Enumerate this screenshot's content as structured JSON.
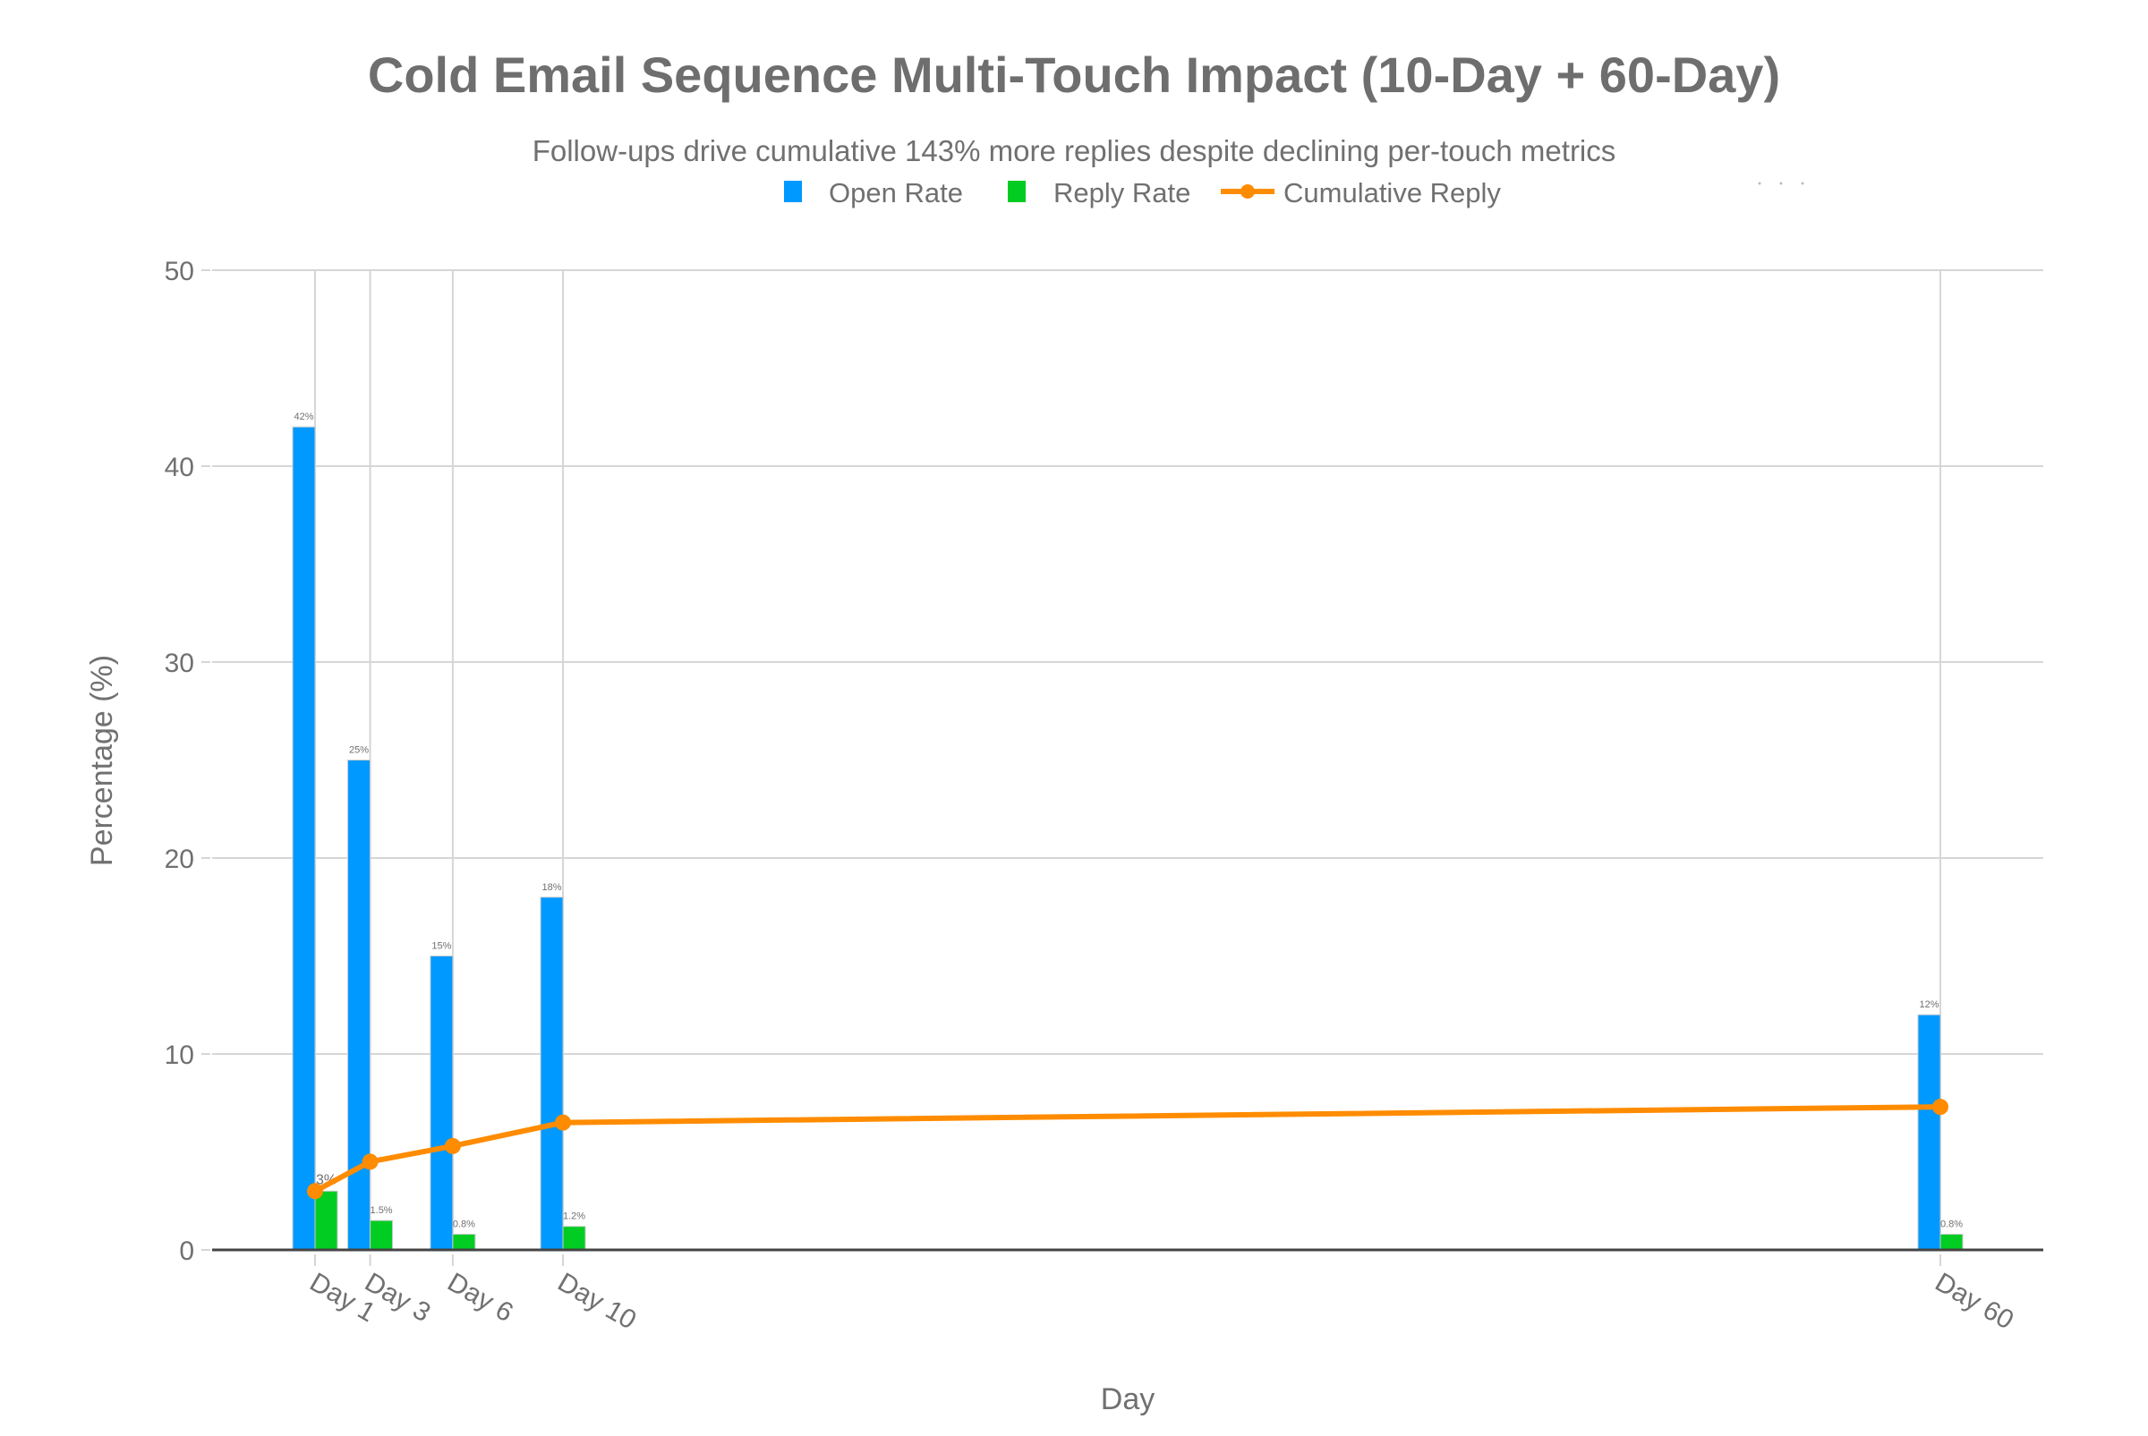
{
  "chart_data": {
    "type": "bar",
    "title": "Cold Email Sequence Multi-Touch Impact (10-Day + 60-Day)",
    "subtitle": "Follow-ups drive cumulative 143% more replies despite declining per-touch metrics",
    "xlabel": "Day",
    "ylabel": "Percentage (%)",
    "ylim": [
      0,
      50
    ],
    "yticks": [
      0,
      10,
      20,
      30,
      40,
      50
    ],
    "grid": true,
    "legend_placement": "top-center",
    "x": [
      1,
      3,
      6,
      10,
      60
    ],
    "categories": [
      "Day 1",
      "Day 3",
      "Day 6",
      "Day 10",
      "Day 60"
    ],
    "series": [
      {
        "name": "Open Rate",
        "type": "bar",
        "color": "#0099ff",
        "values": [
          42,
          25,
          15,
          18,
          12
        ],
        "labels": [
          "42%",
          "25%",
          "15%",
          "18%",
          "12%"
        ]
      },
      {
        "name": "Reply Rate",
        "type": "bar",
        "color": "#00cc22",
        "values": [
          3,
          1.5,
          0.8,
          1.2,
          0.8
        ],
        "labels": [
          "3%",
          "1.5%",
          "0.8%",
          "1.2%",
          "0.8%"
        ]
      },
      {
        "name": "Cumulative Reply",
        "type": "line",
        "color": "#ff8c00",
        "values": [
          3,
          4.5,
          5.3,
          6.5,
          7.3
        ]
      }
    ]
  }
}
